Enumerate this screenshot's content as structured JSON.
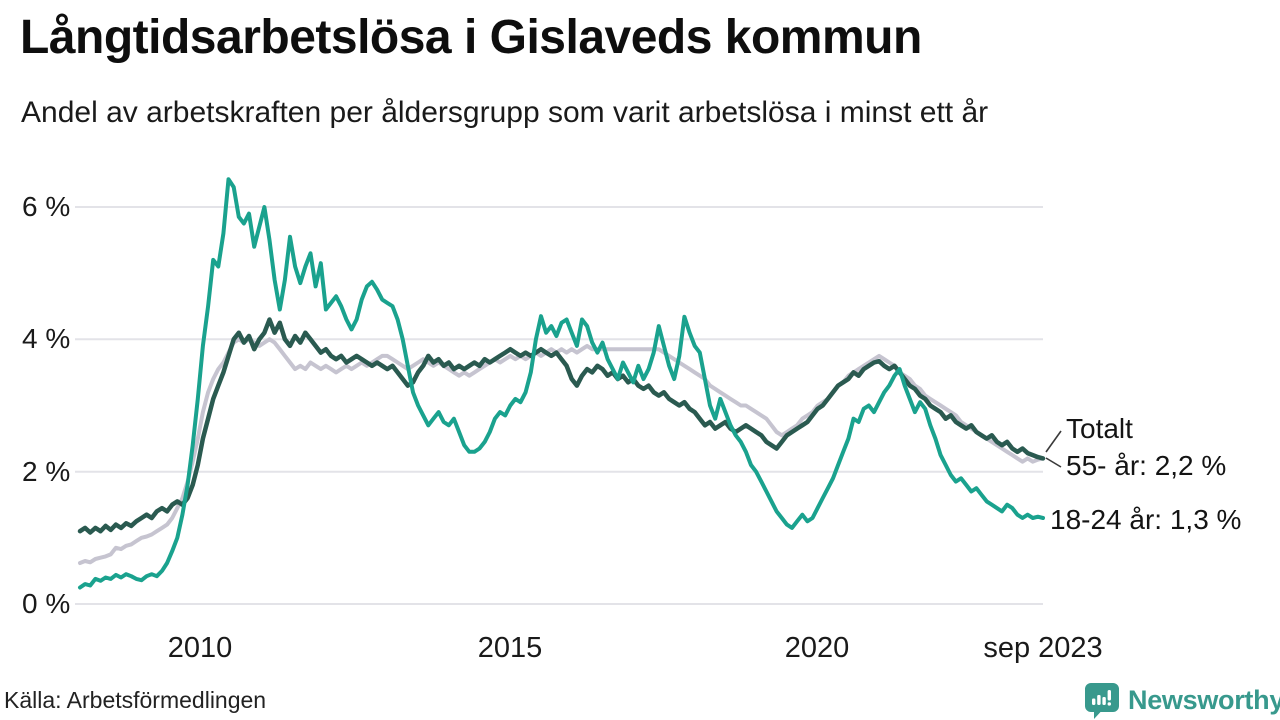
{
  "header": {
    "title": "Långtidsarbetslösa i Gislaveds kommun",
    "subtitle": "Andel av arbetskraften per åldersgrupp som varit arbetslösa i minst ett år"
  },
  "y_axis": {
    "ticks": [
      "6 %",
      "4 %",
      "2 %",
      "0 %"
    ]
  },
  "x_axis": {
    "ticks": [
      "2010",
      "2015",
      "2020",
      "sep 2023"
    ]
  },
  "annotations": {
    "totalt": "Totalt",
    "age_55": "55- år: 2,2 %",
    "age_18_24": "18-24 år: 1,3 %"
  },
  "source": "Källa: Arbetsförmedlingen",
  "logo": {
    "text": "Newsworthy",
    "icon": "speech-bubble-bar-chart"
  },
  "colors": {
    "teal_series": "#1aa28e",
    "dark_green_series": "#2a5a50",
    "gray_series": "#c6c4d0",
    "gridline": "#e3e3e8",
    "leader_line": "#3a3a3a",
    "logo_teal": "#38998d",
    "text": "#111111"
  },
  "chart_data": {
    "type": "line",
    "title": "Långtidsarbetslösa i Gislaveds kommun",
    "subtitle": "Andel av arbetskraften per åldersgrupp som varit arbetslösa i minst ett år",
    "x_start": "2008-01",
    "x_end": "2023-09",
    "x_tick_positions": [
      2010.0,
      2015.0,
      2020.0,
      2023.67
    ],
    "x_tick_labels": [
      "2010",
      "2015",
      "2020",
      "sep 2023"
    ],
    "y_ticks": [
      0,
      2,
      4,
      6
    ],
    "ylim": [
      0,
      6.6
    ],
    "y_unit": "%",
    "grid": "horizontal-only",
    "legend_position": "end-of-line-labels",
    "series": [
      {
        "name": "55- år",
        "end_label": "55- år: 2,2 %",
        "end_value": 2.2,
        "color": "#c6c4d0",
        "width": 4,
        "values": [
          0.62,
          0.65,
          0.63,
          0.68,
          0.7,
          0.72,
          0.75,
          0.85,
          0.83,
          0.88,
          0.9,
          0.95,
          1.0,
          1.02,
          1.05,
          1.1,
          1.15,
          1.2,
          1.3,
          1.45,
          1.6,
          1.85,
          2.15,
          2.5,
          2.9,
          3.2,
          3.4,
          3.55,
          3.65,
          3.8,
          3.95,
          4.0,
          3.95,
          4.0,
          3.95,
          3.9,
          3.95,
          4.0,
          3.95,
          3.85,
          3.75,
          3.65,
          3.55,
          3.6,
          3.55,
          3.65,
          3.6,
          3.55,
          3.6,
          3.55,
          3.5,
          3.55,
          3.6,
          3.55,
          3.6,
          3.65,
          3.6,
          3.65,
          3.7,
          3.75,
          3.75,
          3.7,
          3.65,
          3.6,
          3.55,
          3.6,
          3.65,
          3.7,
          3.65,
          3.6,
          3.65,
          3.6,
          3.55,
          3.5,
          3.45,
          3.5,
          3.45,
          3.5,
          3.55,
          3.6,
          3.65,
          3.7,
          3.65,
          3.7,
          3.75,
          3.7,
          3.75,
          3.7,
          3.75,
          3.8,
          3.75,
          3.8,
          3.85,
          3.8,
          3.85,
          3.8,
          3.85,
          3.8,
          3.85,
          3.9,
          3.85,
          3.85,
          3.85,
          3.85,
          3.85,
          3.85,
          3.85,
          3.85,
          3.85,
          3.85,
          3.85,
          3.85,
          3.85,
          3.85,
          3.8,
          3.75,
          3.7,
          3.65,
          3.6,
          3.55,
          3.5,
          3.45,
          3.4,
          3.3,
          3.25,
          3.2,
          3.15,
          3.1,
          3.05,
          3.0,
          3.0,
          2.95,
          2.9,
          2.85,
          2.8,
          2.7,
          2.6,
          2.55,
          2.6,
          2.65,
          2.7,
          2.8,
          2.85,
          2.9,
          3.0,
          3.05,
          3.1,
          3.2,
          3.3,
          3.35,
          3.45,
          3.5,
          3.55,
          3.6,
          3.65,
          3.7,
          3.75,
          3.7,
          3.65,
          3.6,
          3.5,
          3.45,
          3.4,
          3.3,
          3.25,
          3.15,
          3.1,
          3.05,
          3.0,
          2.95,
          2.9,
          2.85,
          2.75,
          2.7,
          2.65,
          2.6,
          2.55,
          2.5,
          2.45,
          2.4,
          2.35,
          2.3,
          2.25,
          2.2,
          2.15,
          2.2,
          2.15,
          2.18,
          2.2
        ]
      },
      {
        "name": "Totalt",
        "end_label": "Totalt",
        "end_value": 2.2,
        "color": "#2a5a50",
        "width": 4.5,
        "values": [
          1.1,
          1.15,
          1.08,
          1.15,
          1.1,
          1.18,
          1.12,
          1.2,
          1.15,
          1.22,
          1.18,
          1.25,
          1.3,
          1.35,
          1.3,
          1.4,
          1.45,
          1.4,
          1.5,
          1.55,
          1.5,
          1.6,
          1.8,
          2.1,
          2.5,
          2.8,
          3.1,
          3.3,
          3.5,
          3.75,
          4.0,
          4.1,
          3.95,
          4.05,
          3.85,
          4.0,
          4.1,
          4.3,
          4.1,
          4.25,
          4.0,
          3.9,
          4.05,
          3.95,
          4.1,
          4.0,
          3.9,
          3.8,
          3.85,
          3.75,
          3.7,
          3.75,
          3.65,
          3.7,
          3.75,
          3.7,
          3.65,
          3.6,
          3.65,
          3.6,
          3.55,
          3.6,
          3.5,
          3.4,
          3.3,
          3.35,
          3.5,
          3.6,
          3.75,
          3.65,
          3.7,
          3.6,
          3.65,
          3.55,
          3.6,
          3.55,
          3.6,
          3.65,
          3.6,
          3.7,
          3.65,
          3.7,
          3.75,
          3.8,
          3.85,
          3.8,
          3.75,
          3.8,
          3.75,
          3.8,
          3.85,
          3.8,
          3.75,
          3.8,
          3.7,
          3.6,
          3.4,
          3.3,
          3.45,
          3.55,
          3.5,
          3.6,
          3.55,
          3.45,
          3.5,
          3.4,
          3.45,
          3.35,
          3.4,
          3.3,
          3.25,
          3.3,
          3.2,
          3.15,
          3.2,
          3.1,
          3.05,
          3.0,
          3.05,
          2.95,
          2.9,
          2.8,
          2.7,
          2.75,
          2.65,
          2.7,
          2.75,
          2.65,
          2.6,
          2.65,
          2.7,
          2.65,
          2.6,
          2.55,
          2.45,
          2.4,
          2.35,
          2.45,
          2.55,
          2.6,
          2.65,
          2.7,
          2.75,
          2.85,
          2.95,
          3.0,
          3.1,
          3.2,
          3.3,
          3.35,
          3.4,
          3.5,
          3.45,
          3.55,
          3.6,
          3.65,
          3.67,
          3.6,
          3.55,
          3.6,
          3.5,
          3.4,
          3.3,
          3.25,
          3.15,
          3.1,
          3.0,
          2.95,
          2.9,
          2.8,
          2.85,
          2.75,
          2.7,
          2.65,
          2.7,
          2.6,
          2.55,
          2.5,
          2.55,
          2.45,
          2.4,
          2.45,
          2.35,
          2.3,
          2.35,
          2.28,
          2.25,
          2.22,
          2.2
        ]
      },
      {
        "name": "18-24 år",
        "end_label": "18-24 år: 1,3 %",
        "end_value": 1.3,
        "color": "#1aa28e",
        "width": 4,
        "values": [
          0.25,
          0.3,
          0.28,
          0.38,
          0.35,
          0.4,
          0.38,
          0.44,
          0.4,
          0.45,
          0.42,
          0.38,
          0.36,
          0.42,
          0.45,
          0.42,
          0.5,
          0.62,
          0.8,
          1.0,
          1.35,
          1.8,
          2.4,
          3.1,
          3.9,
          4.5,
          5.2,
          5.1,
          5.6,
          6.42,
          6.3,
          5.85,
          5.75,
          5.9,
          5.4,
          5.7,
          6.0,
          5.5,
          4.9,
          4.45,
          4.9,
          5.55,
          5.1,
          4.85,
          5.1,
          5.3,
          4.8,
          5.15,
          4.45,
          4.55,
          4.65,
          4.5,
          4.3,
          4.15,
          4.3,
          4.6,
          4.8,
          4.87,
          4.75,
          4.6,
          4.55,
          4.5,
          4.3,
          4.0,
          3.6,
          3.2,
          3.0,
          2.85,
          2.7,
          2.8,
          2.9,
          2.75,
          2.7,
          2.8,
          2.6,
          2.4,
          2.3,
          2.3,
          2.35,
          2.45,
          2.6,
          2.8,
          2.9,
          2.85,
          3.0,
          3.1,
          3.05,
          3.2,
          3.5,
          4.0,
          4.35,
          4.1,
          4.2,
          4.05,
          4.25,
          4.3,
          4.1,
          3.9,
          4.3,
          4.2,
          3.95,
          3.8,
          3.95,
          3.7,
          3.55,
          3.4,
          3.65,
          3.5,
          3.35,
          3.6,
          3.4,
          3.55,
          3.8,
          4.2,
          3.9,
          3.6,
          3.4,
          3.75,
          4.34,
          4.1,
          3.9,
          3.8,
          3.4,
          3.0,
          2.8,
          3.1,
          2.9,
          2.7,
          2.55,
          2.45,
          2.3,
          2.1,
          2.0,
          1.85,
          1.7,
          1.55,
          1.4,
          1.3,
          1.2,
          1.15,
          1.25,
          1.35,
          1.25,
          1.3,
          1.45,
          1.6,
          1.75,
          1.9,
          2.1,
          2.3,
          2.5,
          2.8,
          2.75,
          2.95,
          3.0,
          2.9,
          3.05,
          3.2,
          3.3,
          3.45,
          3.55,
          3.3,
          3.1,
          2.9,
          3.05,
          2.95,
          2.7,
          2.5,
          2.25,
          2.1,
          1.95,
          1.85,
          1.9,
          1.8,
          1.7,
          1.75,
          1.65,
          1.55,
          1.5,
          1.45,
          1.4,
          1.5,
          1.45,
          1.35,
          1.3,
          1.35,
          1.3,
          1.32,
          1.3
        ]
      }
    ]
  }
}
